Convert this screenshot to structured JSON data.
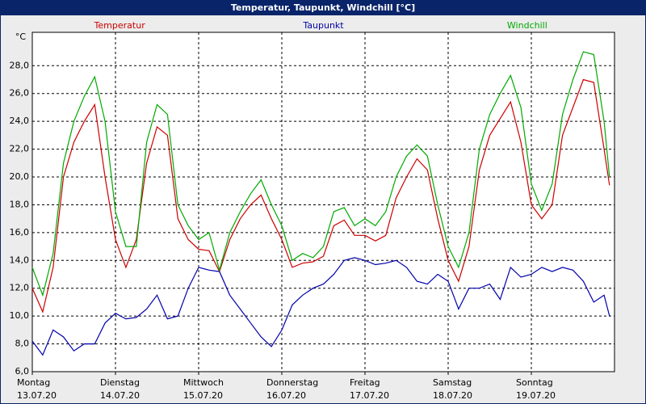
{
  "chart_data": {
    "type": "line",
    "title": "Temperatur, Taupunkt, Windchill [°C]",
    "y_label": "°C",
    "x": [
      0,
      0.125,
      0.25,
      0.375,
      0.5,
      0.625,
      0.75,
      0.875,
      1,
      1.125,
      1.25,
      1.375,
      1.5,
      1.625,
      1.75,
      1.875,
      2,
      2.125,
      2.25,
      2.375,
      2.5,
      2.625,
      2.75,
      2.875,
      3,
      3.125,
      3.25,
      3.375,
      3.5,
      3.625,
      3.75,
      3.875,
      4,
      4.125,
      4.25,
      4.375,
      4.5,
      4.625,
      4.75,
      4.875,
      5,
      5.125,
      5.25,
      5.375,
      5.5,
      5.625,
      5.75,
      5.875,
      6,
      6.125,
      6.25,
      6.375,
      6.5,
      6.625,
      6.75,
      6.875,
      6.94
    ],
    "series": [
      {
        "name": "Temperatur",
        "color": "#cc0000",
        "values": [
          12.0,
          10.3,
          13.5,
          20.0,
          22.5,
          24.0,
          25.2,
          20.0,
          15.5,
          13.5,
          15.5,
          21.0,
          23.6,
          23.0,
          17.0,
          15.5,
          14.8,
          14.7,
          13.2,
          15.5,
          17.0,
          18.0,
          18.7,
          17.0,
          15.5,
          13.5,
          13.8,
          13.9,
          14.3,
          16.5,
          16.9,
          15.8,
          15.8,
          15.4,
          15.8,
          18.5,
          20.0,
          21.3,
          20.5,
          17.0,
          14.0,
          12.5,
          15.0,
          20.5,
          23.0,
          24.2,
          25.4,
          22.5,
          18.0,
          17.0,
          18.0,
          23.0,
          25.0,
          27.0,
          26.8,
          22.0,
          19.4
        ]
      },
      {
        "name": "Taupunkt",
        "color": "#0000aa",
        "values": [
          8.2,
          7.2,
          9.0,
          8.5,
          7.5,
          8.0,
          8.0,
          9.5,
          10.2,
          9.8,
          9.9,
          10.5,
          11.5,
          9.8,
          10.0,
          12.0,
          13.5,
          13.3,
          13.2,
          11.5,
          10.5,
          9.5,
          8.5,
          7.8,
          9.0,
          10.8,
          11.5,
          12.0,
          12.3,
          13.0,
          14.0,
          14.2,
          14.0,
          13.7,
          13.8,
          14.0,
          13.5,
          12.5,
          12.3,
          13.0,
          12.5,
          10.5,
          12.0,
          12.0,
          12.3,
          11.2,
          13.5,
          12.8,
          13.0,
          13.5,
          13.2,
          13.5,
          13.3,
          12.5,
          11.0,
          11.5,
          10.0
        ]
      },
      {
        "name": "Windchill",
        "color": "#00aa00",
        "values": [
          13.5,
          11.5,
          14.5,
          21.0,
          24.0,
          25.8,
          27.2,
          24.0,
          17.5,
          15.0,
          15.0,
          22.5,
          25.2,
          24.5,
          18.0,
          16.5,
          15.5,
          16.0,
          13.3,
          16.0,
          17.5,
          18.8,
          19.8,
          18.0,
          16.5,
          14.0,
          14.5,
          14.2,
          15.0,
          17.5,
          17.8,
          16.5,
          17.0,
          16.5,
          17.5,
          20.0,
          21.5,
          22.3,
          21.5,
          18.0,
          15.0,
          13.5,
          16.0,
          22.0,
          24.5,
          26.0,
          27.3,
          25.0,
          19.5,
          17.6,
          19.5,
          24.5,
          27.0,
          29.0,
          28.8,
          24.0,
          20.0
        ]
      }
    ],
    "xlim": [
      0,
      7
    ],
    "xticks": [
      {
        "value": 0,
        "label": "Montag"
      },
      {
        "value": 1,
        "label": "Dienstag"
      },
      {
        "value": 2,
        "label": "Mittwoch"
      },
      {
        "value": 3,
        "label": "Donnerstag"
      },
      {
        "value": 4,
        "label": "Freitag"
      },
      {
        "value": 5,
        "label": "Samstag"
      },
      {
        "value": 6,
        "label": "Sonntag"
      }
    ],
    "xtick_dates": [
      "13.07.20",
      "14.07.20",
      "15.07.20",
      "16.07.20",
      "17.07.20",
      "18.07.20",
      "19.07.20"
    ],
    "ylim": [
      6,
      30.4
    ],
    "yticks": [
      {
        "value": 6,
        "label": "6,0"
      },
      {
        "value": 8,
        "label": "8,0"
      },
      {
        "value": 10,
        "label": "10,0"
      },
      {
        "value": 12,
        "label": "12,0"
      },
      {
        "value": 14,
        "label": "14,0"
      },
      {
        "value": 16,
        "label": "16,0"
      },
      {
        "value": 18,
        "label": "18,0"
      },
      {
        "value": 20,
        "label": "20,0"
      },
      {
        "value": 22,
        "label": "22,0"
      },
      {
        "value": 24,
        "label": "24,0"
      },
      {
        "value": 26,
        "label": "26,0"
      },
      {
        "value": 28,
        "label": "28,0"
      }
    ],
    "grid": true
  }
}
